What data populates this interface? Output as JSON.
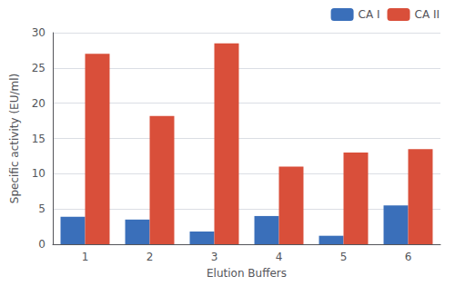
{
  "chart_data": {
    "type": "bar",
    "categories": [
      "1",
      "2",
      "3",
      "4",
      "5",
      "6"
    ],
    "series": [
      {
        "name": "CA I",
        "color": "#3a6fba",
        "values": [
          3.9,
          3.5,
          1.8,
          4.0,
          1.2,
          5.5
        ]
      },
      {
        "name": "CA II",
        "color": "#d94f3a",
        "values": [
          27.0,
          18.2,
          28.5,
          11.0,
          13.0,
          13.5
        ]
      }
    ],
    "xlabel": "Elution Buffers",
    "ylabel": "Specific activity (EU/ml)",
    "ylim": [
      0,
      30
    ],
    "yticks": [
      0,
      5,
      10,
      15,
      20,
      25,
      30
    ],
    "grid": true,
    "legend": "upper right"
  }
}
